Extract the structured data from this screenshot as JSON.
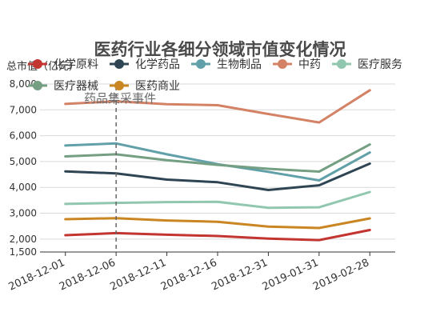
{
  "chart_data": {
    "type": "line",
    "title": "医药行业各细分领域市值变化情况",
    "subtitle": "药品集采事件",
    "ylabel": "总市值（亿元）",
    "xlabel": "",
    "categories": [
      "2018-12-01",
      "2018-12-06",
      "2018-12-11",
      "2018-12-16",
      "2018-12-31",
      "2019-01-31",
      "2019-02-28"
    ],
    "ylim": [
      1500,
      8000
    ],
    "yticks": [
      1500,
      2000,
      3000,
      4000,
      5000,
      6000,
      7000,
      8000
    ],
    "ytick_labels": [
      "1,500",
      "2,000",
      "3,000",
      "4,000",
      "5,000",
      "6,000",
      "7,000",
      "8,000"
    ],
    "grid": true,
    "legend_position": "top",
    "event_marker": {
      "category": "2018-12-06",
      "label": "药品集采事件"
    },
    "series": [
      {
        "name": "化学原料",
        "color": "#c23531",
        "values": [
          2150,
          2230,
          2170,
          2120,
          2020,
          1960,
          2350
        ]
      },
      {
        "name": "化学药品",
        "color": "#2f4554",
        "values": [
          4620,
          4540,
          4300,
          4200,
          3900,
          4080,
          4920
        ]
      },
      {
        "name": "生物制品",
        "color": "#61a0a8",
        "values": [
          5620,
          5700,
          5280,
          4900,
          4600,
          4270,
          5350
        ]
      },
      {
        "name": "中药",
        "color": "#d48265",
        "values": [
          7230,
          7330,
          7220,
          7180,
          6840,
          6510,
          7760
        ]
      },
      {
        "name": "医疗服务",
        "color": "#91c7ae",
        "values": [
          3360,
          3400,
          3430,
          3440,
          3210,
          3230,
          3820
        ]
      },
      {
        "name": "医疗器械",
        "color": "#749f83",
        "values": [
          5200,
          5280,
          5050,
          4870,
          4720,
          4610,
          5660
        ]
      },
      {
        "name": "医药商业",
        "color": "#ca8622",
        "values": [
          2770,
          2810,
          2720,
          2670,
          2480,
          2430,
          2800
        ]
      }
    ]
  }
}
